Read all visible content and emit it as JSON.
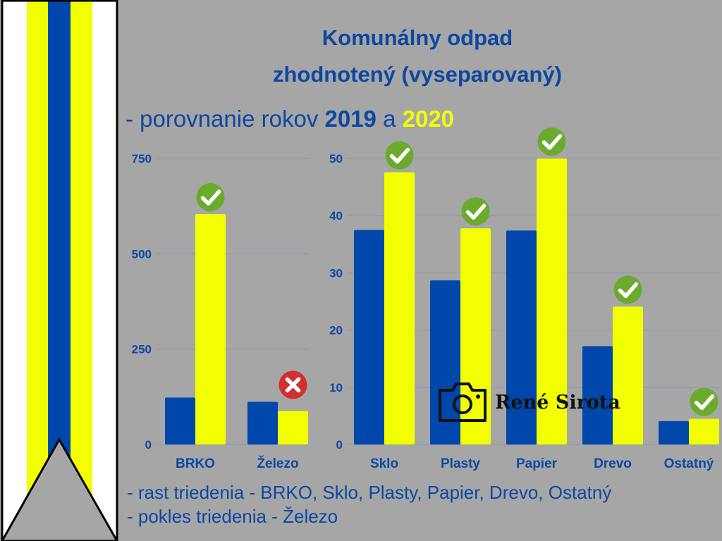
{
  "title": {
    "line1": "Komunálny odpad",
    "line2": "zhodnotený (vyseparovaný)"
  },
  "subtitle": {
    "prefix": "- porovnanie rokov ",
    "year1": "2019",
    "middle": " a ",
    "year2": "2020"
  },
  "colors": {
    "background": "#a6a6a6",
    "series_2019": "#0047ab",
    "series_2020": "#f2ff00",
    "title": "#0d47a1",
    "check_badge": "#6aab2e",
    "cross_badge": "#d32f2f"
  },
  "chart_data": [
    {
      "type": "bar",
      "categories": [
        "BRKO",
        "Železo"
      ],
      "series": [
        {
          "values": [
            123,
            112
          ]
        },
        {
          "values": [
            604,
            88
          ]
        }
      ],
      "yticks": [
        0,
        250,
        500,
        750
      ],
      "ylim": [
        0,
        750
      ],
      "grid": true,
      "status": [
        "increase",
        "decrease"
      ],
      "status_icons": [
        "check-icon",
        "cross-icon"
      ]
    },
    {
      "type": "bar",
      "categories": [
        "Sklo",
        "Plasty",
        "Papier",
        "Drevo",
        "Ostatný"
      ],
      "series": [
        {
          "values": [
            37.5,
            28.7,
            37.4,
            17.2,
            4.1
          ]
        },
        {
          "values": [
            47.6,
            37.8,
            50.0,
            24.1,
            4.5
          ]
        }
      ],
      "yticks": [
        0,
        10,
        20,
        30,
        40,
        50
      ],
      "ylim": [
        0,
        50
      ],
      "grid": true,
      "status": [
        "increase",
        "increase",
        "increase",
        "increase",
        "increase"
      ],
      "status_icons": [
        "check-icon",
        "check-icon",
        "check-icon",
        "check-icon",
        "check-icon"
      ]
    }
  ],
  "notes": [
    "- rast triedenia - BRKO, Sklo, Plasty, Papier, Drevo, Ostatný",
    "- pokles triedenia - Železo"
  ],
  "watermark": {
    "text": "René Sirota",
    "icon": "camera-icon"
  }
}
